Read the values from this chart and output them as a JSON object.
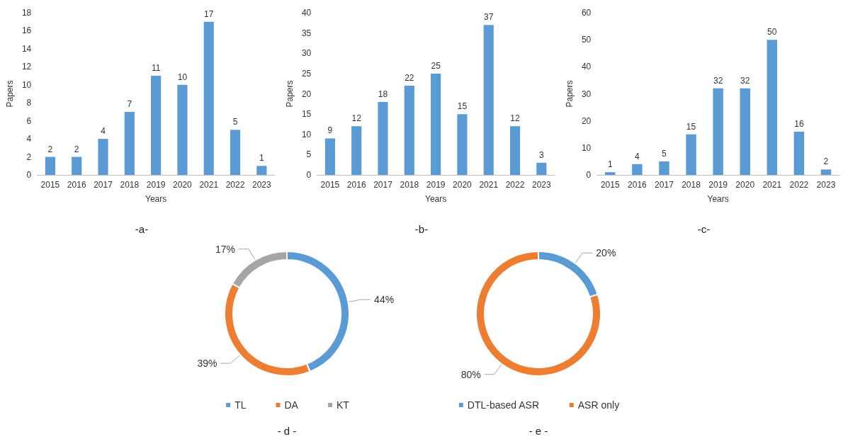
{
  "chart_data": [
    {
      "type": "bar",
      "xlabel": "Years",
      "ylabel": "Papers",
      "categories": [
        "2015",
        "2016",
        "2017",
        "2018",
        "2019",
        "2020",
        "2021",
        "2022",
        "2023"
      ],
      "values": [
        2,
        2,
        4,
        7,
        11,
        10,
        17,
        5,
        1
      ],
      "color": "#5b9bd5",
      "ylim": [
        0,
        18
      ],
      "yticks": [
        0,
        2,
        4,
        6,
        8,
        10,
        12,
        14,
        16,
        18
      ],
      "grid": false,
      "data_labels": true,
      "legend": false,
      "annotations": [
        "-a-"
      ]
    },
    {
      "type": "bar",
      "xlabel": "Years",
      "ylabel": "Papers",
      "categories": [
        "2015",
        "2016",
        "2017",
        "2018",
        "2019",
        "2020",
        "2021",
        "2022",
        "2023"
      ],
      "values": [
        9,
        12,
        18,
        22,
        25,
        15,
        37,
        12,
        3
      ],
      "color": "#5b9bd5",
      "ylim": [
        0,
        40
      ],
      "yticks": [
        0,
        5,
        10,
        15,
        20,
        25,
        30,
        35,
        40
      ],
      "grid": false,
      "data_labels": true,
      "legend": false,
      "annotations": [
        "-b-"
      ]
    },
    {
      "type": "bar",
      "xlabel": "Years",
      "ylabel": "Papers",
      "categories": [
        "2015",
        "2016",
        "2017",
        "2018",
        "2019",
        "2020",
        "2021",
        "2022",
        "2023"
      ],
      "values": [
        1,
        4,
        5,
        15,
        32,
        32,
        50,
        16,
        2
      ],
      "color": "#5b9bd5",
      "ylim": [
        0,
        60
      ],
      "yticks": [
        0,
        10,
        20,
        30,
        40,
        50,
        60
      ],
      "grid": false,
      "data_labels": true,
      "legend": false,
      "annotations": [
        "-c-"
      ]
    },
    {
      "type": "donut",
      "categories": [
        "TL",
        "DA",
        "KT"
      ],
      "values": [
        44,
        39,
        17
      ],
      "colors": [
        "#5b9bd5",
        "#ed7d31",
        "#a5a5a5"
      ],
      "value_labels": [
        "44%",
        "39%",
        "17%"
      ],
      "legend": "bottom",
      "annotations": [
        "- d -"
      ]
    },
    {
      "type": "donut",
      "categories": [
        "DTL-based ASR",
        "ASR only"
      ],
      "values": [
        20,
        80
      ],
      "colors": [
        "#5b9bd5",
        "#ed7d31"
      ],
      "value_labels": [
        "20%",
        "80%"
      ],
      "legend": "bottom",
      "annotations": [
        "- e -"
      ]
    }
  ]
}
